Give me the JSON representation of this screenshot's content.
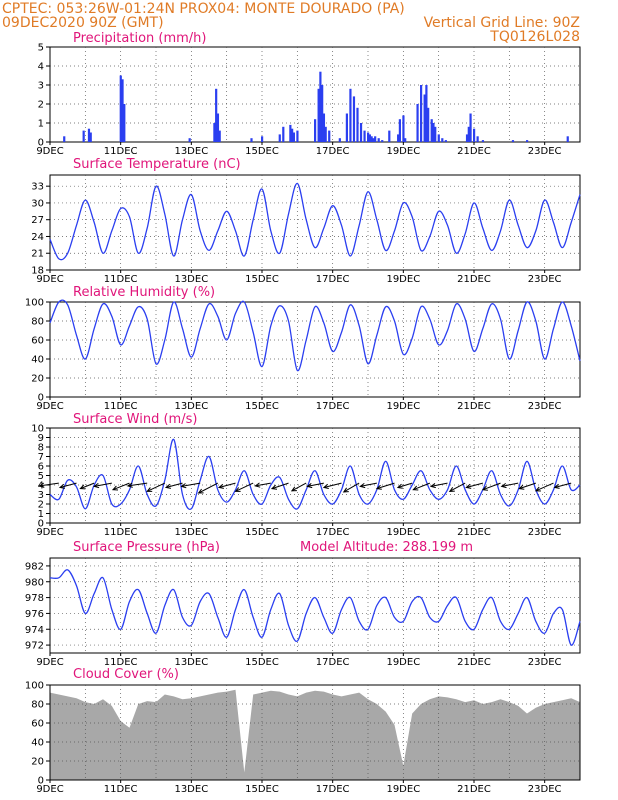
{
  "header": {
    "line1": "CPTEC:   053:26W-01:24N   PROX04: MONTE DOURADO (PA)",
    "line2_left": "09DEC2020 90Z (GMT)",
    "line2_right": "Vertical Grid Line: 90Z",
    "code": "TQ0126L028"
  },
  "colors": {
    "header": "#e07b26",
    "title": "#e0157a",
    "series": "#2b3ff0",
    "cloud": "#a8a8a8"
  },
  "chart_data": [
    {
      "id": "precip",
      "type": "bar",
      "title": "Precipitation (mm/h)",
      "x_unit": "day of Dec 2020",
      "x": [
        9.4,
        9.95,
        10.1,
        10.15,
        11.0,
        11.05,
        11.1,
        12.95,
        13.65,
        13.7,
        13.75,
        13.8,
        14.7,
        15.0,
        15.5,
        15.6,
        15.8,
        15.85,
        15.9,
        16.0,
        16.5,
        16.6,
        16.65,
        16.7,
        16.75,
        16.8,
        16.9,
        17.2,
        17.4,
        17.5,
        17.6,
        17.7,
        17.8,
        17.9,
        18.0,
        18.05,
        18.1,
        18.15,
        18.2,
        18.3,
        18.4,
        18.6,
        18.85,
        18.9,
        19.0,
        19.05,
        19.4,
        19.5,
        19.6,
        19.65,
        19.7,
        19.8,
        19.85,
        19.9,
        20.0,
        20.1,
        20.2,
        20.8,
        20.85,
        20.9,
        21.0,
        21.1,
        21.25,
        22.1,
        22.5,
        23.65
      ],
      "values": [
        0.3,
        0.6,
        0.7,
        0.5,
        3.5,
        3.3,
        2.0,
        0.2,
        1.0,
        2.8,
        1.5,
        0.6,
        0.2,
        0.3,
        0.4,
        0.8,
        0.9,
        0.7,
        0.5,
        0.6,
        1.2,
        2.8,
        3.7,
        3.0,
        1.5,
        0.8,
        0.6,
        0.2,
        1.5,
        2.8,
        2.4,
        1.8,
        1.0,
        0.6,
        0.5,
        0.4,
        0.3,
        0.2,
        0.3,
        0.2,
        0.1,
        0.6,
        0.4,
        1.2,
        1.4,
        0.2,
        2.0,
        3.0,
        2.5,
        3.0,
        1.8,
        1.2,
        1.0,
        0.8,
        0.4,
        0.2,
        0.1,
        0.4,
        0.8,
        1.5,
        0.7,
        0.3,
        0.1,
        0.1,
        0.1,
        0.3
      ],
      "ylim": [
        0,
        5
      ],
      "yticks": [
        0,
        1,
        2,
        3,
        4,
        5
      ]
    },
    {
      "id": "temp",
      "type": "line",
      "title": "Surface Temperature (nC)",
      "x_unit": "day of Dec 2020",
      "x": [
        9.0,
        9.25,
        9.5,
        9.75,
        10.0,
        10.25,
        10.5,
        10.75,
        11.0,
        11.25,
        11.5,
        11.75,
        12.0,
        12.25,
        12.5,
        12.75,
        13.0,
        13.25,
        13.5,
        13.75,
        14.0,
        14.25,
        14.5,
        14.75,
        15.0,
        15.25,
        15.5,
        15.75,
        16.0,
        16.25,
        16.5,
        16.75,
        17.0,
        17.25,
        17.5,
        17.75,
        18.0,
        18.25,
        18.5,
        18.75,
        19.0,
        19.25,
        19.5,
        19.75,
        20.0,
        20.25,
        20.5,
        20.75,
        21.0,
        21.25,
        21.5,
        21.75,
        22.0,
        22.25,
        22.5,
        22.75,
        23.0,
        23.25,
        23.5,
        23.75,
        24.0
      ],
      "values": [
        23.5,
        20.0,
        21.0,
        26.0,
        30.5,
        26.5,
        21.0,
        25.0,
        29.0,
        27.5,
        21.0,
        25.5,
        33.0,
        28.0,
        20.5,
        27.0,
        31.5,
        25.0,
        21.5,
        25.0,
        28.5,
        25.0,
        20.5,
        27.0,
        32.5,
        25.0,
        21.0,
        28.0,
        33.5,
        27.0,
        22.0,
        25.5,
        29.5,
        26.0,
        20.5,
        26.0,
        32.0,
        27.0,
        21.5,
        25.0,
        30.0,
        27.5,
        21.5,
        24.0,
        28.5,
        26.0,
        21.0,
        24.5,
        30.0,
        25.5,
        21.5,
        25.0,
        30.5,
        26.0,
        22.0,
        25.0,
        30.5,
        26.5,
        22.0,
        26.5,
        31.5
      ],
      "ylim": [
        18,
        35
      ],
      "yticks": [
        18,
        21,
        24,
        27,
        30,
        33
      ]
    },
    {
      "id": "rh",
      "type": "line",
      "title": "Relative Humidity (%)",
      "x_unit": "day of Dec 2020",
      "x": [
        9.0,
        9.25,
        9.5,
        9.75,
        10.0,
        10.25,
        10.5,
        10.75,
        11.0,
        11.25,
        11.5,
        11.75,
        12.0,
        12.25,
        12.5,
        12.75,
        13.0,
        13.25,
        13.5,
        13.75,
        14.0,
        14.25,
        14.5,
        14.75,
        15.0,
        15.25,
        15.5,
        15.75,
        16.0,
        16.25,
        16.5,
        16.75,
        17.0,
        17.25,
        17.5,
        17.75,
        18.0,
        18.25,
        18.5,
        18.75,
        19.0,
        19.25,
        19.5,
        19.75,
        20.0,
        20.25,
        20.5,
        20.75,
        21.0,
        21.25,
        21.5,
        21.75,
        22.0,
        22.25,
        22.5,
        22.75,
        23.0,
        23.25,
        23.5,
        23.75,
        24.0
      ],
      "values": [
        78,
        100,
        97,
        65,
        40,
        72,
        98,
        85,
        55,
        75,
        95,
        82,
        35,
        60,
        100,
        72,
        42,
        72,
        98,
        85,
        60,
        88,
        100,
        68,
        32,
        75,
        96,
        80,
        28,
        60,
        95,
        78,
        48,
        68,
        97,
        75,
        35,
        65,
        95,
        80,
        45,
        62,
        95,
        82,
        55,
        70,
        98,
        82,
        48,
        72,
        98,
        82,
        40,
        70,
        100,
        80,
        40,
        72,
        100,
        75,
        38
      ],
      "ylim": [
        0,
        100
      ],
      "yticks": [
        0,
        20,
        40,
        60,
        80,
        100
      ]
    },
    {
      "id": "wind",
      "type": "line",
      "title": "Surface Wind (m/s)",
      "x_unit": "day of Dec 2020",
      "x": [
        9.0,
        9.25,
        9.5,
        9.75,
        10.0,
        10.25,
        10.5,
        10.75,
        11.0,
        11.25,
        11.5,
        11.75,
        12.0,
        12.25,
        12.5,
        12.75,
        13.0,
        13.25,
        13.5,
        13.75,
        14.0,
        14.25,
        14.5,
        14.75,
        15.0,
        15.25,
        15.5,
        15.75,
        16.0,
        16.25,
        16.5,
        16.75,
        17.0,
        17.25,
        17.5,
        17.75,
        18.0,
        18.25,
        18.5,
        18.75,
        19.0,
        19.25,
        19.5,
        19.75,
        20.0,
        20.25,
        20.5,
        20.75,
        21.0,
        21.25,
        21.5,
        21.75,
        22.0,
        22.25,
        22.5,
        22.75,
        23.0,
        23.25,
        23.5,
        23.75,
        24.0
      ],
      "values": [
        3.0,
        2.5,
        4.5,
        3.8,
        1.5,
        4.0,
        5.0,
        2.0,
        2.0,
        3.5,
        6.0,
        3.0,
        1.8,
        4.5,
        8.8,
        3.0,
        1.5,
        4.5,
        7.0,
        3.5,
        2.2,
        3.5,
        5.5,
        3.0,
        2.0,
        4.0,
        4.8,
        2.5,
        1.5,
        3.5,
        5.5,
        3.0,
        2.0,
        3.5,
        6.0,
        3.0,
        2.0,
        3.5,
        6.5,
        3.5,
        2.5,
        4.0,
        5.5,
        3.5,
        2.5,
        3.5,
        6.0,
        3.5,
        2.0,
        3.5,
        5.5,
        3.0,
        1.8,
        3.5,
        6.5,
        3.5,
        2.0,
        3.5,
        6.0,
        3.5,
        4.0
      ],
      "ylim": [
        0,
        10
      ],
      "yticks": [
        0,
        1,
        2,
        3,
        4,
        5,
        6,
        7,
        8,
        9,
        10
      ],
      "vectors": {
        "x": [
          9.25,
          9.75,
          10.25,
          10.75,
          11.25,
          11.75,
          12.25,
          12.75,
          13.25,
          13.75,
          14.25,
          14.75,
          15.25,
          15.75,
          16.25,
          16.75,
          17.25,
          17.75,
          18.25,
          18.75,
          19.25,
          19.75,
          20.25,
          20.75,
          21.25,
          21.75,
          22.25,
          22.75,
          23.25,
          23.75
        ],
        "u": [
          -3.5,
          -3.0,
          -2.5,
          -3.2,
          -3.0,
          -3.5,
          -3.2,
          -3.0,
          -3.4,
          -3.5,
          -3.0,
          -3.2,
          -2.8,
          -3.0,
          -2.6,
          -3.0,
          -3.2,
          -2.8,
          -3.0,
          -3.2,
          -2.6,
          -3.0,
          -3.0,
          -2.8,
          -3.0,
          -3.2,
          -3.0,
          -3.0,
          -3.2,
          -3.0
        ],
        "v": [
          -0.5,
          -0.8,
          -1.0,
          -0.6,
          -1.2,
          -0.5,
          -1.5,
          -0.8,
          -0.6,
          -1.8,
          -0.8,
          -1.5,
          -0.5,
          -1.0,
          -1.4,
          -0.6,
          -0.8,
          -1.6,
          -0.6,
          -1.0,
          -0.8,
          -1.2,
          -0.6,
          -1.5,
          -0.8,
          -1.2,
          -0.6,
          -1.0,
          -1.4,
          -0.8
        ]
      }
    },
    {
      "id": "pressure",
      "type": "line",
      "title": "Surface Pressure (hPa)",
      "annotation": "Model Altitude: 288.199  m",
      "x_unit": "day of Dec 2020",
      "x": [
        9.0,
        9.25,
        9.5,
        9.75,
        10.0,
        10.25,
        10.5,
        10.75,
        11.0,
        11.25,
        11.5,
        11.75,
        12.0,
        12.25,
        12.5,
        12.75,
        13.0,
        13.25,
        13.5,
        13.75,
        14.0,
        14.25,
        14.5,
        14.75,
        15.0,
        15.25,
        15.5,
        15.75,
        16.0,
        16.25,
        16.5,
        16.75,
        17.0,
        17.25,
        17.5,
        17.75,
        18.0,
        18.25,
        18.5,
        18.75,
        19.0,
        19.25,
        19.5,
        19.75,
        20.0,
        20.25,
        20.5,
        20.75,
        21.0,
        21.25,
        21.5,
        21.75,
        22.0,
        22.25,
        22.5,
        22.75,
        23.0,
        23.25,
        23.5,
        23.75,
        24.0
      ],
      "values": [
        980.5,
        980.5,
        981.5,
        979.5,
        976.0,
        978.5,
        980.5,
        976.5,
        974.0,
        977.5,
        979.0,
        976.0,
        973.5,
        977.0,
        979.0,
        975.5,
        974.5,
        977.5,
        978.5,
        975.5,
        973.0,
        976.5,
        979.0,
        975.5,
        973.0,
        976.5,
        978.5,
        974.5,
        972.5,
        976.0,
        978.0,
        975.5,
        973.5,
        976.5,
        978.0,
        975.0,
        974.0,
        977.0,
        978.0,
        975.5,
        975.0,
        977.5,
        978.0,
        975.5,
        975.0,
        977.0,
        978.0,
        975.0,
        974.0,
        976.5,
        978.0,
        975.0,
        974.0,
        976.0,
        978.0,
        975.0,
        973.5,
        976.0,
        976.5,
        972.0,
        975.0
      ],
      "ylim": [
        971,
        983
      ],
      "yticks": [
        972,
        974,
        976,
        978,
        980,
        982
      ]
    },
    {
      "id": "cloud",
      "type": "area",
      "title": "Cloud Cover (%)",
      "x_unit": "day of Dec 2020",
      "x": [
        9.0,
        9.25,
        9.5,
        9.75,
        10.0,
        10.25,
        10.5,
        10.75,
        11.0,
        11.25,
        11.5,
        11.75,
        12.0,
        12.25,
        12.5,
        12.75,
        13.0,
        13.25,
        13.5,
        13.75,
        14.0,
        14.25,
        14.5,
        14.75,
        15.0,
        15.25,
        15.5,
        15.75,
        16.0,
        16.25,
        16.5,
        16.75,
        17.0,
        17.25,
        17.5,
        17.75,
        18.0,
        18.25,
        18.5,
        18.75,
        19.0,
        19.25,
        19.5,
        19.75,
        20.0,
        20.25,
        20.5,
        20.75,
        21.0,
        21.25,
        21.5,
        21.75,
        22.0,
        22.25,
        22.5,
        22.75,
        23.0,
        23.25,
        23.5,
        23.75,
        24.0
      ],
      "values": [
        92,
        90,
        88,
        86,
        82,
        80,
        85,
        78,
        62,
        55,
        80,
        83,
        82,
        90,
        88,
        85,
        86,
        88,
        90,
        92,
        93,
        95,
        8,
        90,
        92,
        94,
        93,
        90,
        88,
        92,
        94,
        93,
        90,
        88,
        90,
        92,
        85,
        80,
        72,
        58,
        15,
        70,
        80,
        85,
        88,
        87,
        85,
        82,
        84,
        80,
        82,
        85,
        82,
        78,
        70,
        76,
        80,
        82,
        84,
        86,
        82
      ],
      "ylim": [
        0,
        100
      ],
      "yticks": [
        0,
        20,
        40,
        60,
        80,
        100
      ]
    }
  ],
  "x_ticks": [
    "9DEC",
    "11DEC",
    "13DEC",
    "15DEC",
    "17DEC",
    "19DEC",
    "21DEC",
    "23DEC"
  ]
}
